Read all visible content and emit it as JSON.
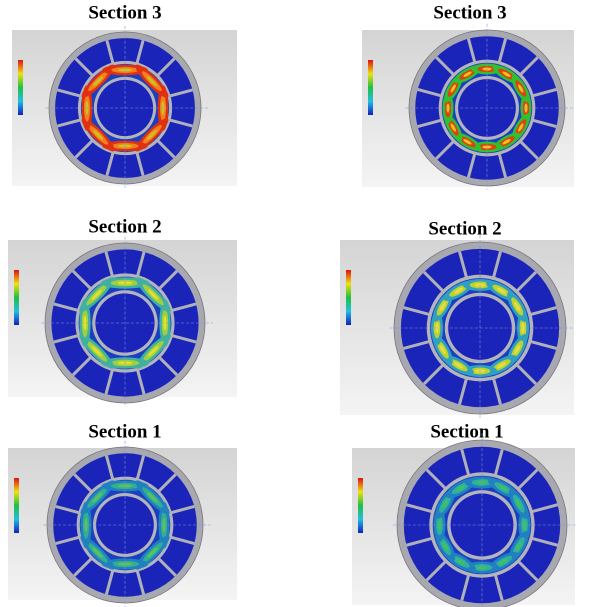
{
  "panels": [
    {
      "title": "Section 3"
    },
    {
      "title": "Section 3"
    },
    {
      "title": "Section 2"
    },
    {
      "title": "Section 2"
    },
    {
      "title": "Section 1"
    },
    {
      "title": "Section 1"
    }
  ]
}
